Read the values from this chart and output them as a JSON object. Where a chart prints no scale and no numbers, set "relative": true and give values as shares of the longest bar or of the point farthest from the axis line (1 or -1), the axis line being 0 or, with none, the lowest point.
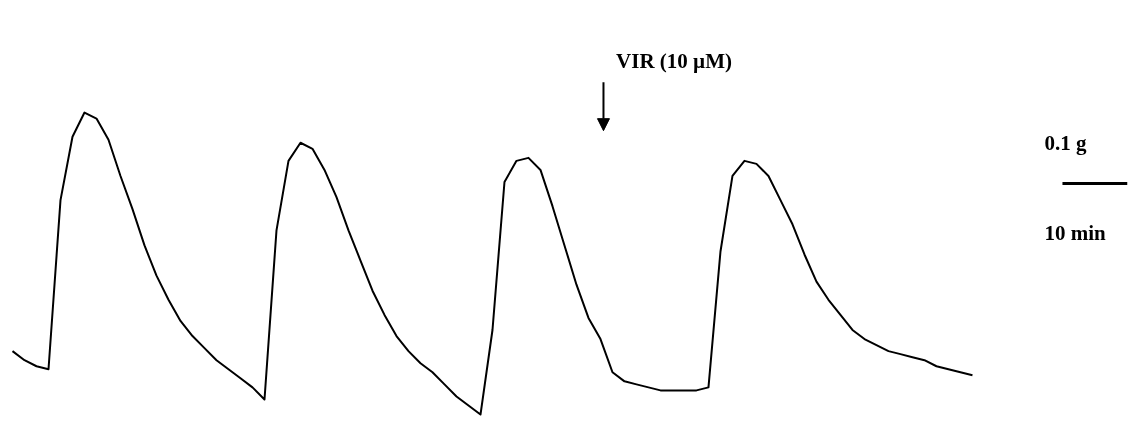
{
  "chart_data": {
    "type": "line",
    "relative": true,
    "tick_labels": false,
    "grid": false,
    "categories": [
      null,
      null,
      null,
      null,
      null,
      null,
      null,
      null,
      null,
      null,
      null,
      null,
      null,
      null,
      null,
      null,
      null,
      null,
      null,
      null,
      null,
      null,
      null,
      null,
      null,
      null,
      null,
      null,
      null,
      null,
      null,
      null,
      null,
      null,
      null,
      null,
      null,
      null,
      null,
      null,
      null,
      null,
      null,
      null,
      null,
      null,
      null,
      null,
      null,
      null,
      null,
      null,
      null,
      null,
      null,
      null,
      null,
      null,
      null,
      null,
      null,
      null,
      null,
      null,
      null,
      null,
      null,
      null,
      null,
      null,
      null,
      null,
      null,
      null,
      null,
      null,
      null,
      null,
      null,
      null,
      null
    ],
    "series": [
      {
        "color": "#000000",
        "values": [
          0.21,
          0.18,
          0.16,
          0.15,
          0.71,
          0.92,
          1,
          0.98,
          0.91,
          0.79,
          0.68,
          0.56,
          0.46,
          0.38,
          0.31,
          0.26,
          0.22,
          0.18,
          0.15,
          0.12,
          0.09,
          0.05,
          0.61,
          0.84,
          0.9,
          0.88,
          0.81,
          0.72,
          0.61,
          0.51,
          0.41,
          0.33,
          0.26,
          0.21,
          0.17,
          0.14,
          0.1,
          0.06,
          0.03,
          0,
          0.28,
          0.77,
          0.84,
          0.85,
          0.81,
          0.69,
          0.56,
          0.43,
          0.32,
          0.25,
          0.14,
          0.11,
          0.1,
          0.09,
          0.08,
          0.08,
          0.08,
          0.08,
          0.09,
          0.54,
          0.79,
          0.84,
          0.83,
          0.79,
          0.71,
          0.63,
          0.53,
          0.44,
          0.38,
          0.33,
          0.28,
          0.25,
          0.23,
          0.21,
          0.2,
          0.19,
          0.18,
          0.16,
          0.15,
          0.14,
          0.13
        ]
      }
    ],
    "annotations": [
      "VIR (10 µM)",
      "0.1 g",
      "10 min"
    ]
  }
}
